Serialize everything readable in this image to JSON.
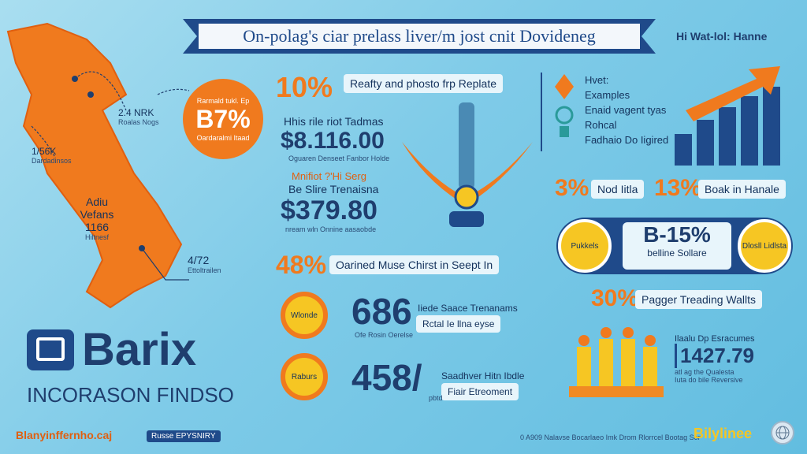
{
  "header": {
    "title": "On-polag's ciar prelass liver/m jost cnit Dovideneg",
    "right_tag": "Hi Wat-lol: Hanne"
  },
  "map": {
    "callout_pct": "B7%",
    "callout_top": "Rarmald tukl. Ep",
    "callout_bottom": "Oardaralmi Itaad",
    "labels": [
      {
        "value": "2.4 NRK",
        "text": "Roalas Nogs"
      },
      {
        "value": "1/56K",
        "text": "Dardadinsos"
      },
      {
        "value": "Adiu Vefans 1166",
        "text": "Hiltnesf"
      },
      {
        "value": "4/72",
        "text": "Ettoltrailen"
      }
    ]
  },
  "brand": {
    "name": "Barix",
    "tagline": "INCORASON FINDSO",
    "footer_left": "Blanyinffernho.caj",
    "footer_badge": "Russe EPYSNIRY",
    "footer_center": "0 A909 Nalavse Bocarlaeo Imk Drom Rlorrcel Bootag Sor",
    "footer_logo": "Bilylinee"
  },
  "middle": {
    "row1_pct": "10%",
    "row1_label": "Reafty and phosto frp Replate",
    "block_a_title": "Hhis rile riot Tadmas",
    "block_a_value": "$8.116.00",
    "block_a_sub": "Oguaren Denseet Fanbor Holde",
    "block_b_title": "Mnifiot ?'Hi Serg",
    "block_b_subtitle": "Be Slire Trenaisna",
    "block_b_value": "$379.80",
    "block_b_sub": "nream wln Onnine aasaobde",
    "row2_pct": "48%",
    "row2_label": "Oarined Muse Chirst in Seept In",
    "stat1_value": "686",
    "stat1_badge": "Wlonde",
    "stat1_title": "Iiede Saace Trenanams",
    "stat1_label": "Rctal Ie llna eyse",
    "stat1_sub": "Ofe Rosin Oerelse",
    "stat2_value": "458/",
    "stat2_badge": "Raburs",
    "stat2_title": "Saadhver Hitn Ibdle",
    "stat2_label": "Fiair Etreoment",
    "stat2_sub": "pbtd"
  },
  "right": {
    "list": [
      "Hvet:",
      "Examples",
      "Enaid vagent tyas",
      "Rohcal",
      "Fadhaio Do Iigired"
    ],
    "pct_a": "3%",
    "pct_a_label": "Nod Iitla",
    "pct_b": "13%",
    "pct_b_label": "Boak in Hanale",
    "center_pct": "B-15%",
    "center_label": "belline Sollare",
    "left_coin": "Pukkels",
    "right_coin": "Dlosll Lidlsta",
    "row_pct": "30%",
    "row_label": "Pagger Treading Wallts",
    "box_title": "Ilaalu Dp Esracumes",
    "box_value": "1427.79",
    "box_sub1": "atl ag the Qualesta",
    "box_sub2": "Iuta do bile Reversive"
  },
  "colors": {
    "accent": "#f07a1e",
    "navy": "#1f4a8a",
    "background": "#7fcbe8",
    "gold": "#f6c623"
  }
}
